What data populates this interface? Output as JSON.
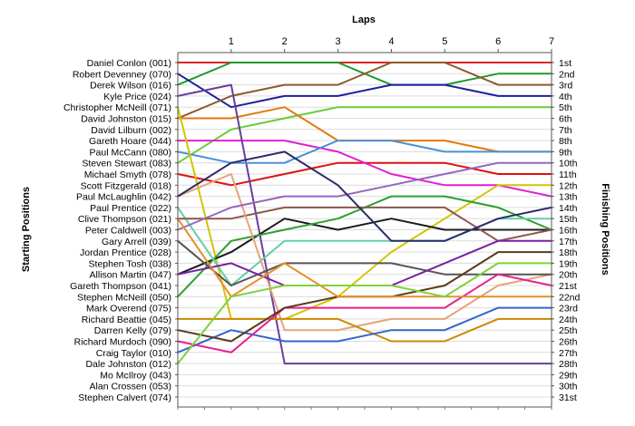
{
  "chart_data": {
    "type": "line",
    "title": "Laps",
    "xlabel": "Laps",
    "ylabel_left": "Starting Positions",
    "ylabel_right": "Finishing Positions",
    "x_ticks": [
      1,
      2,
      3,
      4,
      5,
      6,
      7
    ],
    "xlim": [
      0,
      7
    ],
    "ylim": [
      1,
      31
    ],
    "y_inverted": true,
    "grid": "horizontal",
    "drivers": [
      "Daniel Conlon (001)",
      "Robert Devenney (070)",
      "Derek Wilson (016)",
      "Kyle Price (024)",
      "Christopher McNeill (071)",
      "David Johnston (015)",
      "David Lilburn (002)",
      "Gareth Hoare (044)",
      "Paul McCann (080)",
      "Steven Stewart (083)",
      "Michael Smyth (078)",
      "Scott Fitzgerald (018)",
      "Paul McLaughlin (042)",
      "Paul Prentice (022)",
      "Clive Thompson (021)",
      "Peter Caldwell (003)",
      "Gary Arrell (039)",
      "Jordan Prentice (028)",
      "Stephen Tosh (038)",
      "Allison Martin (047)",
      "Gareth Thompson (041)",
      "Stephen McNeill (050)",
      "Mark Overend (075)",
      "Richard Beattie (045)",
      "Darren Kelly (079)",
      "Richard Murdoch (090)",
      "Craig Taylor (010)",
      "Dale Johnston (012)",
      "Mo McIlroy (043)",
      "Alan Crossen (053)",
      "Stephen Calvert (074)"
    ],
    "positions": [
      "1st",
      "2nd",
      "3rd",
      "4th",
      "5th",
      "6th",
      "7th",
      "8th",
      "9th",
      "10th",
      "11th",
      "12th",
      "13th",
      "14th",
      "15th",
      "16th",
      "17th",
      "18th",
      "19th",
      "20th",
      "21st",
      "22nd",
      "23rd",
      "24th",
      "25th",
      "26th",
      "27th",
      "28th",
      "29th",
      "30th",
      "31st"
    ],
    "series": [
      {
        "color": "#d62728",
        "values": [
          1,
          1,
          1,
          1,
          1,
          1,
          1,
          1
        ]
      },
      {
        "color": "#1f9a2e",
        "values": [
          3,
          1,
          1,
          1,
          3,
          3,
          2,
          2
        ]
      },
      {
        "color": "#1f1f9c",
        "values": [
          2,
          5,
          4,
          4,
          3,
          3,
          4,
          4
        ]
      },
      {
        "color": "#8b5a2b",
        "values": [
          6,
          4,
          3,
          3,
          1,
          1,
          3,
          3
        ]
      },
      {
        "color": "#dd1111",
        "values": [
          11,
          12,
          11,
          10,
          10,
          10,
          11,
          11
        ]
      },
      {
        "color": "#66cc33",
        "values": [
          10,
          7,
          6,
          5,
          5,
          5,
          5,
          5
        ]
      },
      {
        "color": "#e07a10",
        "values": [
          6,
          6,
          5,
          8,
          8,
          8,
          9,
          9
        ]
      },
      {
        "color": "#e21fd0",
        "values": [
          8,
          8,
          8,
          9,
          11,
          12,
          12,
          13
        ]
      },
      {
        "color": "#6a3d9a",
        "values": [
          4,
          3,
          28,
          28,
          28,
          28,
          28,
          28
        ]
      },
      {
        "color": "#4a90d9",
        "values": [
          9,
          10,
          10,
          8,
          8,
          9,
          9,
          9
        ]
      },
      {
        "color": "#d4c400",
        "values": [
          5,
          24,
          24,
          22,
          18,
          15,
          12,
          12
        ]
      },
      {
        "color": "#1b1b1b",
        "values": [
          20,
          18,
          15,
          16,
          15,
          16,
          16,
          16
        ]
      },
      {
        "color": "#2ca02c",
        "values": [
          22,
          17,
          16,
          15,
          13,
          13,
          14,
          16
        ]
      },
      {
        "color": "#66cdaa",
        "values": [
          14,
          21,
          17,
          17,
          17,
          17,
          15,
          15
        ]
      },
      {
        "color": "#8c564b",
        "values": [
          15,
          15,
          14,
          14,
          14,
          14,
          17,
          16
        ]
      },
      {
        "color": "#e7a37a",
        "values": [
          13,
          11,
          25,
          25,
          24,
          24,
          21,
          20
        ]
      },
      {
        "color": "#9467bd",
        "values": [
          16,
          14,
          13,
          13,
          12,
          11,
          10,
          10
        ]
      },
      {
        "color": "#2b2b6a",
        "values": [
          13,
          10,
          9,
          12,
          17,
          17,
          15,
          14
        ]
      },
      {
        "color": "#555555",
        "values": [
          17,
          21,
          19,
          19,
          19,
          20,
          20,
          20
        ]
      },
      {
        "color": "#7b1fa2",
        "values": [
          20,
          19,
          21,
          21,
          21,
          19,
          17,
          17
        ]
      },
      {
        "color": "#cc8800",
        "values": [
          24,
          24,
          24,
          24,
          26,
          26,
          24,
          24
        ]
      },
      {
        "color": "#3366cc",
        "values": [
          27,
          25,
          26,
          26,
          25,
          25,
          23,
          23
        ]
      },
      {
        "color": "#e91e8c",
        "values": [
          26,
          27,
          23,
          23,
          23,
          23,
          20,
          21
        ]
      },
      {
        "color": "#5a3a1a",
        "values": [
          25,
          26,
          23,
          22,
          22,
          21,
          18,
          18
        ]
      },
      {
        "color": "#e88e2d",
        "values": [
          15,
          22,
          19,
          22,
          22,
          22,
          22,
          22
        ]
      },
      {
        "color": "#7fd13b",
        "values": [
          28,
          22,
          21,
          21,
          21,
          22,
          19,
          19
        ]
      }
    ]
  }
}
